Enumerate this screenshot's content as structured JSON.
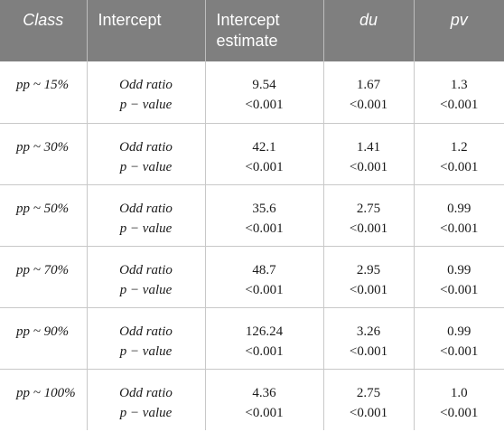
{
  "header": {
    "class": "Class",
    "intercept": "Intercept",
    "estimate_line1": "Intercept",
    "estimate_line2": "estimate",
    "du": "du",
    "pv": "pv"
  },
  "labels": {
    "odd_ratio": "Odd ratio",
    "p_value": "p − value"
  },
  "rows": [
    {
      "class": "pp ~ 15%",
      "estimate": [
        "9.54",
        "<0.001"
      ],
      "du": [
        "1.67",
        "<0.001"
      ],
      "pv": [
        "1.3",
        "<0.001"
      ]
    },
    {
      "class": "pp ~ 30%",
      "estimate": [
        "42.1",
        "<0.001"
      ],
      "du": [
        "1.41",
        "<0.001"
      ],
      "pv": [
        "1.2",
        "<0.001"
      ]
    },
    {
      "class": "pp ~ 50%",
      "estimate": [
        "35.6",
        "<0.001"
      ],
      "du": [
        "2.75",
        "<0.001"
      ],
      "pv": [
        "0.99",
        "<0.001"
      ]
    },
    {
      "class": "pp ~ 70%",
      "estimate": [
        "48.7",
        "<0.001"
      ],
      "du": [
        "2.95",
        "<0.001"
      ],
      "pv": [
        "0.99",
        "<0.001"
      ]
    },
    {
      "class": "pp ~ 90%",
      "estimate": [
        "126.24",
        "<0.001"
      ],
      "du": [
        "3.26",
        "<0.001"
      ],
      "pv": [
        "0.99",
        "<0.001"
      ]
    },
    {
      "class": "pp ~ 100%",
      "estimate": [
        "4.36",
        "<0.001"
      ],
      "du": [
        "2.75",
        "<0.001"
      ],
      "pv": [
        "1.0",
        "<0.001"
      ]
    }
  ]
}
